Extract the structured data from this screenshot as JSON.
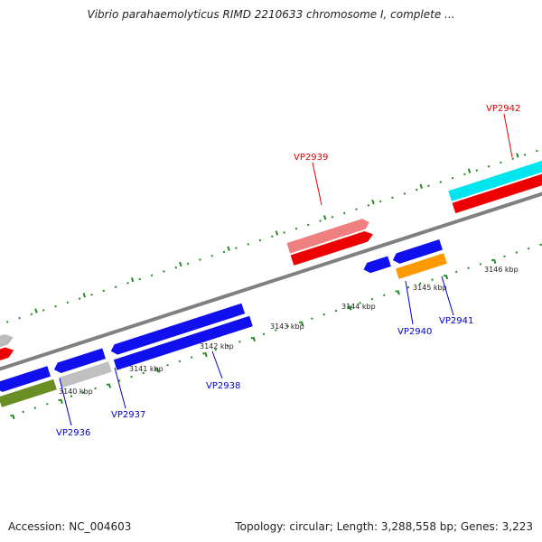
{
  "title": "Vibrio parahaemolyticus RIMD 2210633 chromosome I, complete ...",
  "footer": {
    "accession": "Accession: NC_004603",
    "summary": "Topology: circular; Length: 3,288,558 bp; Genes: 3,223"
  },
  "ruler": {
    "labels": [
      "3140 kbp",
      "3141 kbp",
      "3142 kbp",
      "3143 kbp",
      "3144 kbp",
      "3145 kbp",
      "3146 kbp"
    ]
  },
  "genes": {
    "forward_labeled": [
      "VP2939",
      "VP2942"
    ],
    "reverse_labeled": [
      "VP2936",
      "VP2937",
      "VP2938",
      "VP2940",
      "VP2941"
    ]
  },
  "colors": {
    "forward_label": "#dd0000",
    "reverse_label": "#0000cc",
    "backbone": "#808080",
    "tick": "#228b22"
  }
}
